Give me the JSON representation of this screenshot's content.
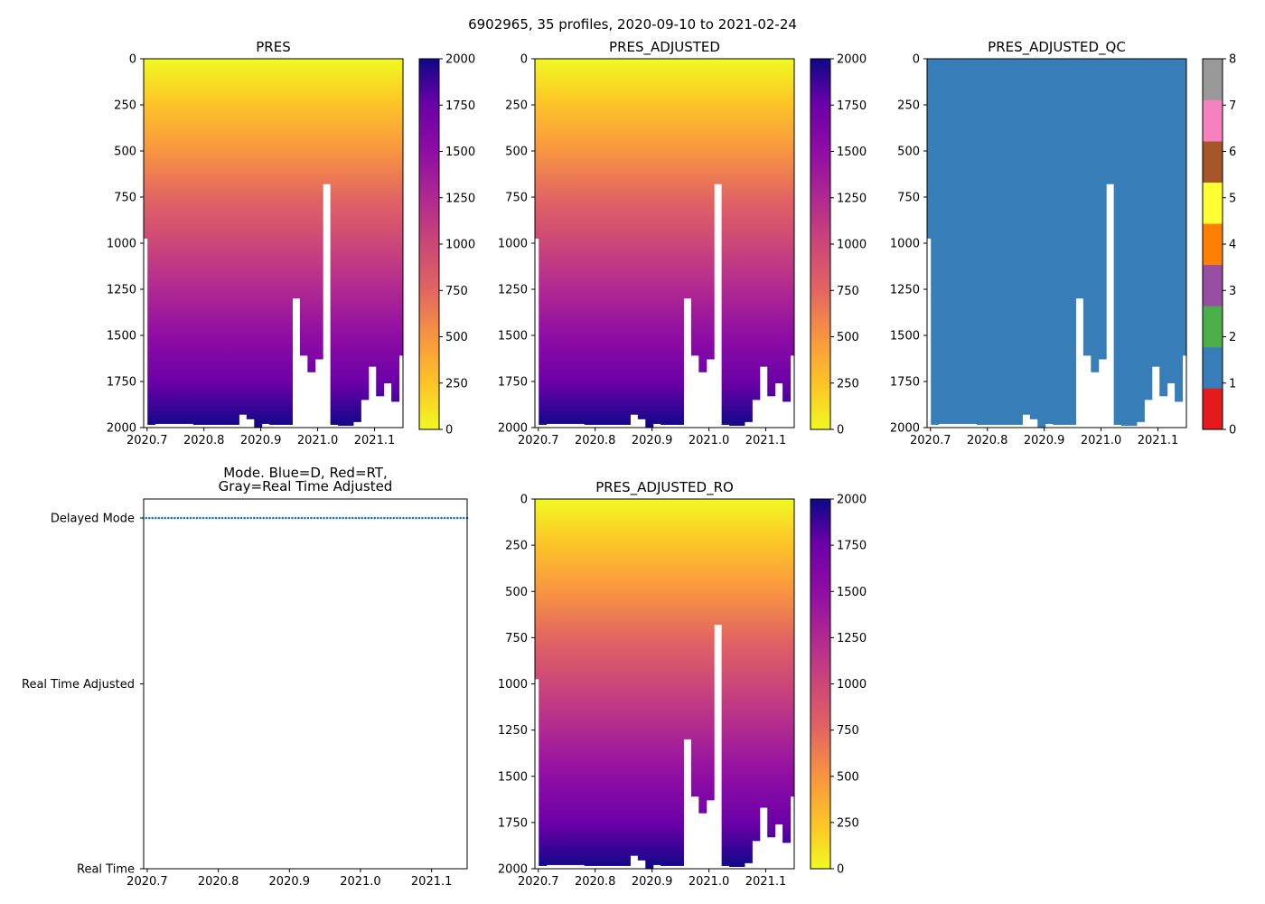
{
  "suptitle": "6902965, 35 profiles, 2020-09-10 to 2021-02-24",
  "profiles": {
    "time": [
      2020.694,
      2020.7074,
      2020.7208,
      2020.7342,
      2020.7476,
      2020.761,
      2020.7744,
      2020.7878,
      2020.8012,
      2020.8146,
      2020.828,
      2020.8414,
      2020.8548,
      2020.8682,
      2020.8816,
      2020.895,
      2020.9084,
      2020.9218,
      2020.9352,
      2020.9486,
      2020.962,
      2020.9754,
      2020.9888,
      2021.0022,
      2021.0156,
      2021.029,
      2021.0424,
      2021.0558,
      2021.0692,
      2021.0826,
      2021.096,
      2021.1094,
      2021.1228,
      2021.1362,
      2021.15
    ],
    "max_pres": [
      975,
      1985,
      1980,
      1980,
      1980,
      1980,
      1980,
      1985,
      1985,
      1985,
      1985,
      1985,
      1985,
      1930,
      1955,
      2000,
      1980,
      1985,
      1985,
      1985,
      1300,
      1610,
      1700,
      1630,
      680,
      1985,
      1990,
      1990,
      1970,
      1850,
      1670,
      1830,
      1760,
      1860,
      1610
    ]
  },
  "chart_data": [
    {
      "type": "heatmap",
      "title": "PRES",
      "ylabel": "",
      "ylim": [
        2000,
        0
      ],
      "xlim": [
        2020.694,
        2021.15
      ],
      "xticks": [
        "2020.7",
        "2020.8",
        "2020.9",
        "2021.0",
        "2021.1"
      ],
      "yticks": [
        "0",
        "250",
        "500",
        "750",
        "1000",
        "1250",
        "1500",
        "1750",
        "2000"
      ],
      "colorbar": {
        "cmap": "plasma_r",
        "range": [
          0,
          2000
        ],
        "ticks": [
          "0",
          "250",
          "500",
          "750",
          "1000",
          "1250",
          "1500",
          "1750",
          "2000"
        ]
      }
    },
    {
      "type": "heatmap",
      "title": "PRES_ADJUSTED",
      "ylim": [
        2000,
        0
      ],
      "xlim": [
        2020.694,
        2021.15
      ],
      "xticks": [
        "2020.7",
        "2020.8",
        "2020.9",
        "2021.0",
        "2021.1"
      ],
      "yticks": [
        "0",
        "250",
        "500",
        "750",
        "1000",
        "1250",
        "1500",
        "1750",
        "2000"
      ],
      "colorbar": {
        "cmap": "plasma_r",
        "range": [
          0,
          2000
        ],
        "ticks": [
          "0",
          "250",
          "500",
          "750",
          "1000",
          "1250",
          "1500",
          "1750",
          "2000"
        ]
      }
    },
    {
      "type": "heatmap",
      "title": "PRES_ADJUSTED_QC",
      "ylim": [
        2000,
        0
      ],
      "xlim": [
        2020.694,
        2021.15
      ],
      "value": 1,
      "xticks": [
        "2020.7",
        "2020.8",
        "2020.9",
        "2021.0",
        "2021.1"
      ],
      "yticks": [
        "0",
        "250",
        "500",
        "750",
        "1000",
        "1250",
        "1500",
        "1750",
        "2000"
      ],
      "colorbar": {
        "cmap": "Set1",
        "range": [
          0,
          8
        ],
        "ticks": [
          "0",
          "1",
          "2",
          "3",
          "4",
          "5",
          "6",
          "7",
          "8"
        ],
        "colors": [
          "#e41a1c",
          "#377eb8",
          "#4daf4a",
          "#984ea3",
          "#ff7f00",
          "#ffff33",
          "#a65628",
          "#f781bf",
          "#999999"
        ]
      }
    },
    {
      "type": "scatter",
      "title": "Mode. Blue=D, Red=RT,",
      "title2": "Gray=Real Time Adjusted",
      "xlim": [
        2020.695,
        2021.15
      ],
      "categories": [
        "Real Time",
        "Real Time Adjusted",
        "Delayed Mode"
      ],
      "xticks": [
        "2020.7",
        "2020.8",
        "2020.9",
        "2021.0",
        "2021.1"
      ],
      "mode_value": "Delayed Mode",
      "color": "#1f77b4"
    },
    {
      "type": "heatmap",
      "title": "PRES_ADJUSTED_RO",
      "ylim": [
        2000,
        0
      ],
      "xlim": [
        2020.694,
        2021.15
      ],
      "xticks": [
        "2020.7",
        "2020.8",
        "2020.9",
        "2021.0",
        "2021.1"
      ],
      "yticks": [
        "0",
        "250",
        "500",
        "750",
        "1000",
        "1250",
        "1500",
        "1750",
        "2000"
      ],
      "colorbar": {
        "cmap": "plasma_r",
        "range": [
          0,
          2000
        ],
        "ticks": [
          "0",
          "250",
          "500",
          "750",
          "1000",
          "1250",
          "1500",
          "1750",
          "2000"
        ]
      }
    }
  ]
}
